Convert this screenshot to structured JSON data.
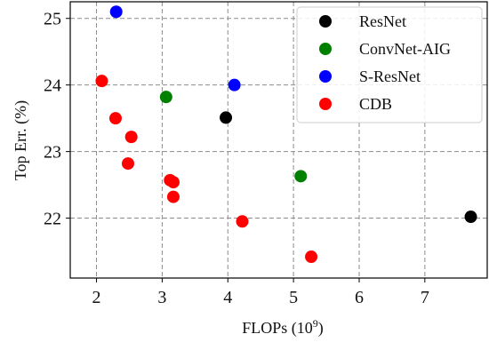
{
  "chart_data": {
    "type": "scatter",
    "xlabel": "FLOPs (10",
    "xlabel_exponent": "9",
    "xlabel_suffix": ")",
    "ylabel": "Top Err. (%)",
    "xlim": [
      1.6,
      7.95
    ],
    "ylim": [
      21.1,
      25.25
    ],
    "xticks": [
      2,
      3,
      4,
      5,
      6,
      7
    ],
    "yticks": [
      22,
      23,
      24,
      25
    ],
    "grid": true,
    "grid_style": "dashed",
    "legend_position": "top-right",
    "series": [
      {
        "name": "ResNet",
        "color": "#000000",
        "points": [
          {
            "x": 3.97,
            "y": 23.51
          },
          {
            "x": 7.7,
            "y": 22.02
          }
        ]
      },
      {
        "name": "ConvNet-AIG",
        "color": "#008000",
        "points": [
          {
            "x": 3.06,
            "y": 23.82
          },
          {
            "x": 5.11,
            "y": 22.63
          }
        ]
      },
      {
        "name": "S-ResNet",
        "color": "#0000ff",
        "points": [
          {
            "x": 2.3,
            "y": 25.1
          },
          {
            "x": 4.1,
            "y": 24.0
          }
        ]
      },
      {
        "name": "CDB",
        "color": "#ff0000",
        "points": [
          {
            "x": 2.08,
            "y": 24.06
          },
          {
            "x": 2.29,
            "y": 23.5
          },
          {
            "x": 2.53,
            "y": 23.22
          },
          {
            "x": 2.48,
            "y": 22.82
          },
          {
            "x": 3.12,
            "y": 22.57
          },
          {
            "x": 3.17,
            "y": 22.54
          },
          {
            "x": 3.17,
            "y": 22.32
          },
          {
            "x": 4.22,
            "y": 21.95
          },
          {
            "x": 5.27,
            "y": 21.42
          }
        ]
      }
    ]
  }
}
